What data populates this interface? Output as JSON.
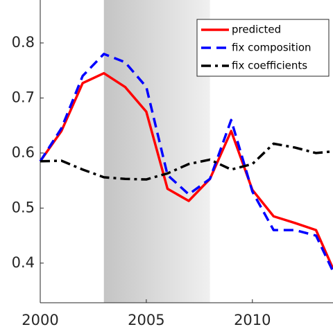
{
  "chart_data": {
    "type": "line",
    "x": [
      2000,
      2001,
      2002,
      2003,
      2004,
      2005,
      2006,
      2007,
      2008,
      2009,
      2010,
      2011,
      2012,
      2013,
      2013.8
    ],
    "series": [
      {
        "name": "predicted",
        "color": "#ff0000",
        "style": "solid",
        "values": [
          0.585,
          0.64,
          0.727,
          0.745,
          0.72,
          0.675,
          0.535,
          0.513,
          0.553,
          0.64,
          0.533,
          0.485,
          0.473,
          0.46,
          0.39
        ]
      },
      {
        "name": "fix composition",
        "color": "#0000ff",
        "style": "dash",
        "values": [
          0.585,
          0.645,
          0.74,
          0.78,
          0.765,
          0.72,
          0.56,
          0.525,
          0.553,
          0.66,
          0.53,
          0.46,
          0.46,
          0.45,
          0.385
        ]
      },
      {
        "name": "fix coefficients",
        "color": "#000000",
        "style": "dashdot",
        "values": [
          0.585,
          0.586,
          0.57,
          0.556,
          0.553,
          0.552,
          0.563,
          0.58,
          0.588,
          0.57,
          0.58,
          0.617,
          0.61,
          0.6,
          0.603
        ]
      }
    ],
    "shaded_region": [
      2003,
      2008
    ],
    "xlim": [
      2000,
      2013.8
    ],
    "xticks": [
      2000,
      2005,
      2010
    ],
    "ylim": [
      0.328,
      0.878
    ],
    "yticks": [
      0.4,
      0.5,
      0.6,
      0.7,
      0.8
    ],
    "legend": "upper right",
    "grid": false
  }
}
